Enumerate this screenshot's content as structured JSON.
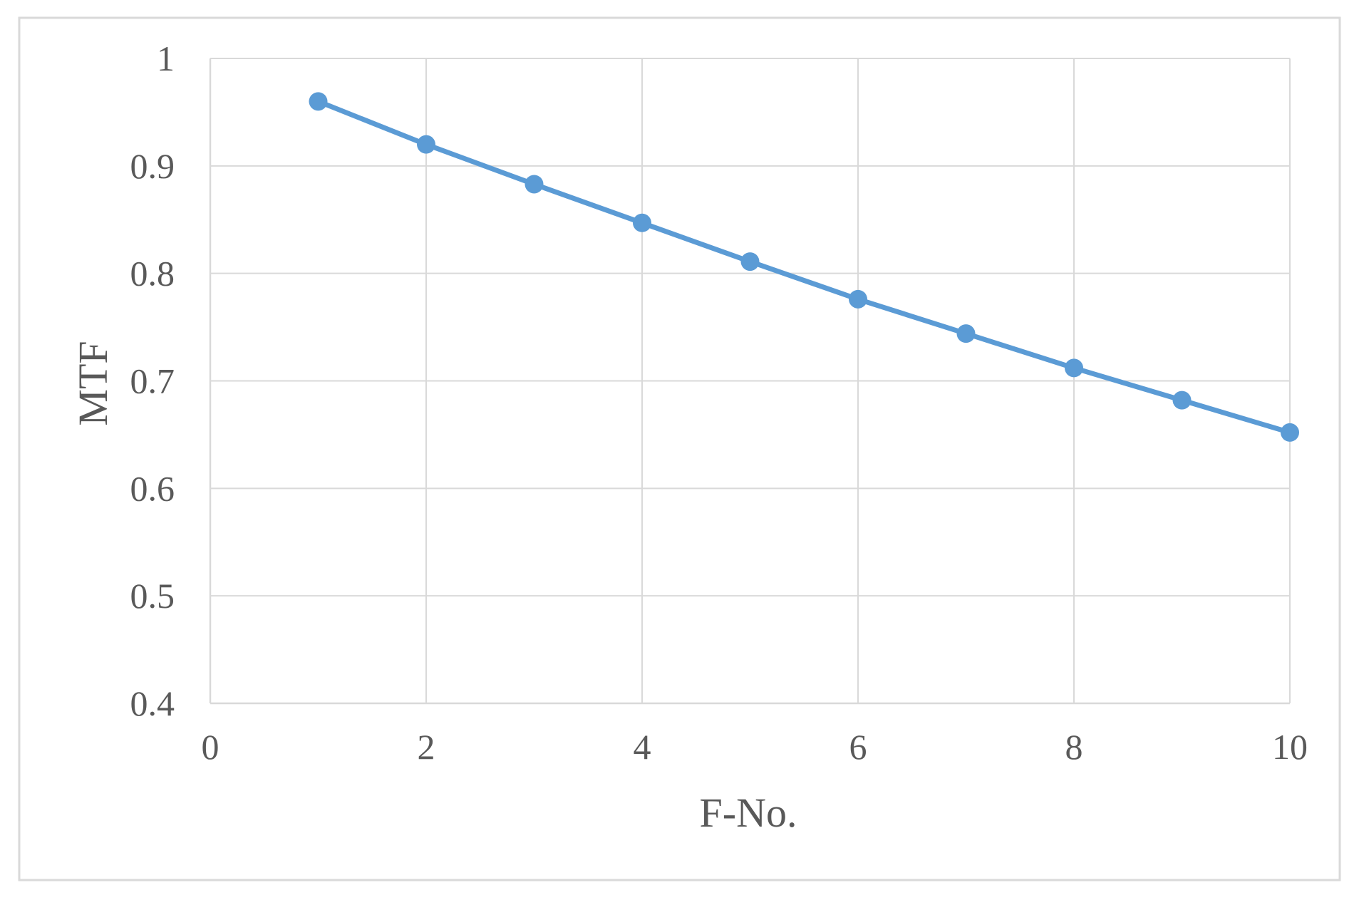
{
  "chart_data": {
    "type": "line",
    "title": "",
    "xlabel": "F-No.",
    "ylabel": "MTF",
    "xlim": [
      0,
      10
    ],
    "ylim": [
      0.4,
      1
    ],
    "x_ticks": [
      "0",
      "2",
      "4",
      "6",
      "8",
      "10"
    ],
    "y_ticks": [
      "0.4",
      "0.5",
      "0.6",
      "0.7",
      "0.8",
      "0.9",
      "1"
    ],
    "grid": true,
    "legend": "none",
    "series": [
      {
        "x": [
          1,
          2,
          3,
          4,
          5,
          6,
          7,
          8,
          9,
          10
        ],
        "values": [
          0.96,
          0.92,
          0.883,
          0.847,
          0.811,
          0.776,
          0.744,
          0.712,
          0.682,
          0.652
        ],
        "color": "#5B9BD5"
      }
    ]
  },
  "colors": {
    "series": "#5B9BD5",
    "grid": "#D9D9D9",
    "text": "#595959",
    "frame": "#D9D9D9"
  }
}
